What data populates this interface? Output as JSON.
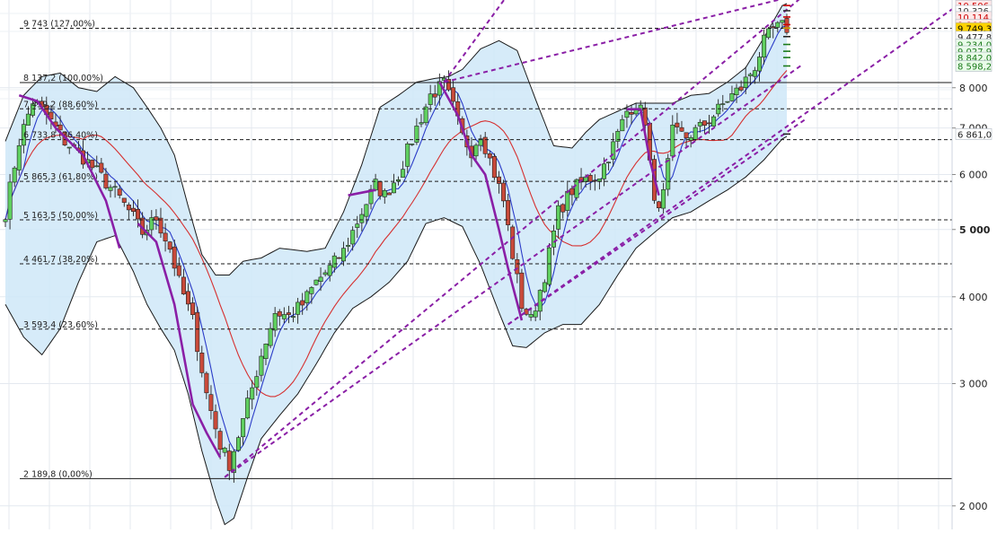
{
  "chart_data": {
    "type": "candlestick",
    "title": "",
    "xlabel": "",
    "ylabel": "",
    "ylim": [
      1850,
      10700
    ],
    "y_scale": "log",
    "grid": true,
    "y_axis_position": "right",
    "y_ticks": [
      {
        "label": "2 000",
        "value": 2000,
        "bold": false
      },
      {
        "label": "3 000",
        "value": 3000,
        "bold": false
      },
      {
        "label": "4 000",
        "value": 4000,
        "bold": false
      },
      {
        "label": "5 000",
        "value": 5000,
        "bold": true
      },
      {
        "label": "6 000",
        "value": 6000,
        "bold": false
      },
      {
        "label": "7 000",
        "value": 7000,
        "bold": false
      },
      {
        "label": "8 000",
        "value": 8000,
        "bold": false
      }
    ],
    "fibonacci_levels": [
      {
        "label": "9 743 (127,00%)",
        "value": 9743,
        "style": "dashed"
      },
      {
        "label": "8 137,2 (100,00%)",
        "value": 8137.2,
        "style": "solid"
      },
      {
        "label": "7 459,2 (88,60%)",
        "value": 7459.2,
        "style": "dashed"
      },
      {
        "label": "6 733,8 (76,40%)",
        "value": 6733.8,
        "style": "dashed"
      },
      {
        "label": "5 865,3 (61,80%)",
        "value": 5865.3,
        "style": "dashed"
      },
      {
        "label": "5 163,5 (50,00%)",
        "value": 5163.5,
        "style": "dashed"
      },
      {
        "label": "4 461,7 (38,20%)",
        "value": 4461.7,
        "style": "dashed"
      },
      {
        "label": "3 593,4 (23,60%)",
        "value": 3593.4,
        "style": "dashed"
      },
      {
        "label": "2 189,8 (0,00%)",
        "value": 2189.8,
        "style": "solid"
      }
    ],
    "price_labels": [
      {
        "label": "10 506",
        "value": 10506,
        "color": "#cc0000",
        "bg": "#ffe9e9"
      },
      {
        "label": "10 326",
        "value": 10326,
        "color": "#333333",
        "bg": "#ffffff"
      },
      {
        "label": "10 114",
        "value": 10114,
        "color": "#cc0000",
        "bg": "#ffe9e9"
      },
      {
        "label": "9 860,8",
        "value": 9860.8,
        "color": "#cc0000",
        "bg": "#ffe9e9"
      },
      {
        "label": "9 749,3",
        "value": 9749.3,
        "color": "#000000",
        "bg": "#ffd200"
      },
      {
        "label": "9 477,8",
        "value": 9477.8,
        "color": "#222222",
        "bg": "#ffffff"
      },
      {
        "label": "9 234,0",
        "value": 9234.0,
        "color": "#1a7a1a",
        "bg": "#e9fbe9"
      },
      {
        "label": "9 027,9",
        "value": 9027.9,
        "color": "#1a7a1a",
        "bg": "#e9fbe9"
      },
      {
        "label": "8 842,0",
        "value": 8842.0,
        "color": "#1a7a1a",
        "bg": "#e9fbe9"
      },
      {
        "label": "8 598,2",
        "value": 8598.2,
        "color": "#1a7a1a",
        "bg": "#e9fbe9"
      },
      {
        "label": "6 861,0",
        "value": 6861.0,
        "color": "#222222",
        "bg": "#ffffff"
      }
    ],
    "price_path": [
      [
        0,
        5300
      ],
      [
        3,
        6700
      ],
      [
        6,
        7650
      ],
      [
        9,
        7300
      ],
      [
        13,
        6700
      ],
      [
        17,
        6350
      ],
      [
        21,
        5950
      ],
      [
        25,
        5550
      ],
      [
        28,
        5200
      ],
      [
        30,
        4950
      ],
      [
        33,
        5200
      ],
      [
        36,
        4700
      ],
      [
        38,
        4200
      ],
      [
        41,
        3700
      ],
      [
        44,
        2900
      ],
      [
        47,
        2450
      ],
      [
        49,
        2300
      ],
      [
        52,
        2650
      ],
      [
        56,
        3300
      ],
      [
        59,
        3800
      ],
      [
        62,
        3750
      ],
      [
        65,
        3900
      ],
      [
        68,
        4200
      ],
      [
        71,
        4400
      ],
      [
        74,
        4650
      ],
      [
        78,
        5300
      ],
      [
        81,
        5800
      ],
      [
        83,
        5600
      ],
      [
        86,
        6000
      ],
      [
        90,
        7000
      ],
      [
        93,
        7800
      ],
      [
        96,
        8100
      ],
      [
        98,
        7500
      ],
      [
        100,
        6800
      ],
      [
        102,
        6500
      ],
      [
        104,
        6900
      ],
      [
        106,
        6300
      ],
      [
        109,
        5500
      ],
      [
        111,
        4600
      ],
      [
        113,
        3900
      ],
      [
        115,
        3700
      ],
      [
        118,
        4300
      ],
      [
        121,
        5300
      ],
      [
        124,
        5700
      ],
      [
        127,
        5900
      ],
      [
        130,
        6000
      ],
      [
        133,
        6600
      ],
      [
        136,
        7400
      ],
      [
        138,
        7600
      ],
      [
        140,
        7200
      ],
      [
        142,
        5400
      ],
      [
        144,
        5600
      ],
      [
        146,
        6900
      ],
      [
        149,
        6800
      ],
      [
        152,
        7000
      ],
      [
        155,
        7300
      ],
      [
        158,
        7700
      ],
      [
        161,
        8000
      ],
      [
        164,
        8600
      ],
      [
        166,
        9300
      ],
      [
        168,
        9700
      ],
      [
        170,
        9800
      ],
      [
        171,
        9750
      ]
    ],
    "total_bars": 172,
    "bands": {
      "upper": [
        [
          0,
          6700
        ],
        [
          4,
          7800
        ],
        [
          8,
          8300
        ],
        [
          12,
          8400
        ],
        [
          16,
          8000
        ],
        [
          20,
          7900
        ],
        [
          24,
          8300
        ],
        [
          28,
          8000
        ],
        [
          31,
          7500
        ],
        [
          34,
          7000
        ],
        [
          37,
          6400
        ],
        [
          40,
          5400
        ],
        [
          43,
          4600
        ],
        [
          46,
          4300
        ],
        [
          49,
          4300
        ],
        [
          52,
          4500
        ],
        [
          56,
          4550
        ],
        [
          60,
          4700
        ],
        [
          66,
          4650
        ],
        [
          70,
          4700
        ],
        [
          74,
          5300
        ],
        [
          78,
          6200
        ],
        [
          82,
          7500
        ],
        [
          86,
          7800
        ],
        [
          90,
          8150
        ],
        [
          94,
          8250
        ],
        [
          97,
          8300
        ],
        [
          100,
          8500
        ],
        [
          104,
          9100
        ],
        [
          108,
          9350
        ],
        [
          112,
          9050
        ],
        [
          116,
          7700
        ],
        [
          120,
          6600
        ],
        [
          124,
          6550
        ],
        [
          127,
          6900
        ],
        [
          130,
          7200
        ],
        [
          134,
          7400
        ],
        [
          138,
          7600
        ],
        [
          142,
          7600
        ],
        [
          146,
          7600
        ],
        [
          150,
          7800
        ],
        [
          154,
          7850
        ],
        [
          158,
          8150
        ],
        [
          162,
          8550
        ],
        [
          166,
          9450
        ],
        [
          170,
          10500
        ],
        [
          172,
          10650
        ]
      ],
      "lower": [
        [
          0,
          3900
        ],
        [
          4,
          3500
        ],
        [
          8,
          3300
        ],
        [
          12,
          3600
        ],
        [
          16,
          4200
        ],
        [
          20,
          4800
        ],
        [
          24,
          4900
        ],
        [
          28,
          4350
        ],
        [
          31,
          3900
        ],
        [
          34,
          3600
        ],
        [
          37,
          3350
        ],
        [
          40,
          2900
        ],
        [
          43,
          2400
        ],
        [
          46,
          2050
        ],
        [
          48,
          1880
        ],
        [
          50,
          1920
        ],
        [
          53,
          2200
        ],
        [
          56,
          2500
        ],
        [
          60,
          2700
        ],
        [
          64,
          2900
        ],
        [
          68,
          3200
        ],
        [
          72,
          3550
        ],
        [
          76,
          3850
        ],
        [
          80,
          4000
        ],
        [
          84,
          4200
        ],
        [
          88,
          4500
        ],
        [
          92,
          5100
        ],
        [
          96,
          5200
        ],
        [
          100,
          5050
        ],
        [
          104,
          4450
        ],
        [
          108,
          3800
        ],
        [
          111,
          3400
        ],
        [
          114,
          3380
        ],
        [
          118,
          3550
        ],
        [
          122,
          3650
        ],
        [
          126,
          3650
        ],
        [
          130,
          3900
        ],
        [
          134,
          4300
        ],
        [
          138,
          4700
        ],
        [
          142,
          4950
        ],
        [
          146,
          5200
        ],
        [
          150,
          5300
        ],
        [
          154,
          5500
        ],
        [
          158,
          5700
        ],
        [
          162,
          5950
        ],
        [
          166,
          6300
        ],
        [
          170,
          6750
        ],
        [
          172,
          6861
        ]
      ],
      "fill": "#cfe8f8",
      "stroke": "#1a1a1a"
    },
    "ma_fast": {
      "color": "#2b3cc8"
    },
    "ma_slow": {
      "color": "#d63030"
    },
    "channel_lines": [
      {
        "from": [
          48,
          2200
        ],
        "to": [
          174,
          8600
        ]
      },
      {
        "from": [
          48,
          2200
        ],
        "to": [
          175,
          10900
        ]
      },
      {
        "from": [
          96,
          8150
        ],
        "to": [
          174,
          10900
        ]
      },
      {
        "from": [
          96,
          8150
        ],
        "to": [
          110,
          10900
        ]
      },
      {
        "from": [
          110,
          3650
        ],
        "to": [
          175,
          7200
        ]
      },
      {
        "from": [
          110,
          3650
        ],
        "to": [
          210,
          10700
        ]
      }
    ],
    "zigzag_segments": [
      [
        [
          3,
          7800
        ],
        [
          7,
          7650
        ],
        [
          11,
          7000
        ],
        [
          17,
          6400
        ],
        [
          22,
          5500
        ],
        [
          25,
          4700
        ]
      ],
      [
        [
          29,
          5100
        ],
        [
          33,
          4800
        ],
        [
          37,
          3900
        ],
        [
          41,
          2800
        ],
        [
          44,
          2550
        ],
        [
          47,
          2350
        ]
      ],
      [
        [
          75,
          5600
        ],
        [
          81,
          5700
        ]
      ],
      [
        [
          95,
          8150
        ],
        [
          99,
          7300
        ],
        [
          102,
          6400
        ],
        [
          105,
          6000
        ],
        [
          108,
          5000
        ],
        [
          110,
          4400
        ],
        [
          113,
          3700
        ]
      ],
      [
        [
          136,
          7450
        ],
        [
          139,
          7450
        ],
        [
          141,
          6300
        ],
        [
          143,
          5600
        ]
      ]
    ],
    "zigzag_color": "#8a1fa6",
    "channel_color": "#8a1fa6",
    "up_color": "#5fcf5f",
    "down_color": "#c94a3a"
  }
}
